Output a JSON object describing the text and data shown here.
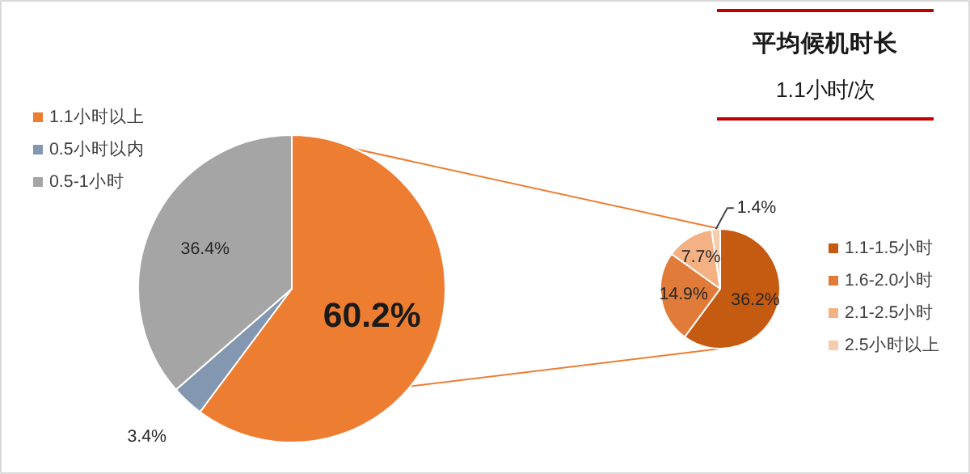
{
  "chart_data": [
    {
      "type": "pie",
      "categories": [
        "1.1小时以上",
        "0.5小时以内",
        "0.5-1小时"
      ],
      "values": [
        60.2,
        3.4,
        36.4
      ],
      "colors": [
        "#ed7d31",
        "#8497b0",
        "#a5a5a5"
      ],
      "value_labels": [
        "60.2%",
        "3.4%",
        "36.4%"
      ],
      "legend": "top left"
    },
    {
      "type": "pie",
      "categories": [
        "1.1-1.5小时",
        "1.6-2.0小时",
        "2.1-2.5小时",
        "2.5小时以上"
      ],
      "values": [
        36.2,
        14.9,
        7.7,
        1.4
      ],
      "colors": [
        "#c55a11",
        "#e07b39",
        "#f4b183",
        "#f8cbad"
      ],
      "value_labels": [
        "36.2%",
        "14.9%",
        "7.7%",
        "1.4%"
      ],
      "legend": "right"
    },
    {
      "type": "other",
      "title": "平均候机时长",
      "subtitle": "1.1小时/次"
    }
  ]
}
